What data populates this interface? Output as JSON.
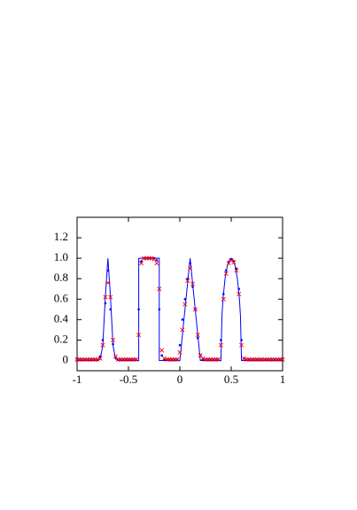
{
  "chart_data": {
    "type": "line",
    "xlim": [
      -1,
      1
    ],
    "ylim": [
      -0.1,
      1.4
    ],
    "xticks": [
      -1,
      -0.5,
      0,
      0.5,
      1
    ],
    "yticks": [
      0,
      0.2,
      0.4,
      0.6,
      0.8,
      {
        "value": 1,
        "label": "1.0"
      },
      1.2
    ],
    "series": [
      {
        "mode": "line",
        "color": "#0000ff",
        "x": [
          -1,
          -0.8,
          -0.775,
          -0.75,
          -0.725,
          -0.7,
          -0.675,
          -0.65,
          -0.625,
          -0.6,
          -0.4,
          -0.4,
          -0.2,
          -0.2,
          0,
          0.1,
          0.2,
          0.4,
          0.41,
          0.42,
          0.44,
          0.46,
          0.48,
          0.5,
          0.52,
          0.54,
          0.56,
          0.58,
          0.59,
          0.6,
          1
        ],
        "values": [
          0,
          0,
          0.013,
          0.146,
          0.62,
          1,
          0.62,
          0.146,
          0.013,
          0,
          0,
          1,
          1,
          0,
          0,
          1,
          0,
          0,
          0.436,
          0.6,
          0.8,
          0.917,
          0.98,
          1,
          0.98,
          0.917,
          0.8,
          0.6,
          0.436,
          0,
          0
        ]
      },
      {
        "mode": "dot",
        "color": "#0000ff",
        "x": [
          -1,
          -0.975,
          -0.95,
          -0.925,
          -0.9,
          -0.875,
          -0.85,
          -0.825,
          -0.8,
          -0.775,
          -0.75,
          -0.725,
          -0.7,
          -0.675,
          -0.65,
          -0.625,
          -0.6,
          -0.575,
          -0.55,
          -0.525,
          -0.5,
          -0.475,
          -0.45,
          -0.425,
          -0.4,
          -0.375,
          -0.35,
          -0.325,
          -0.3,
          -0.275,
          -0.25,
          -0.225,
          -0.2,
          -0.175,
          -0.15,
          -0.125,
          -0.1,
          -0.075,
          -0.05,
          -0.025,
          0,
          0.025,
          0.05,
          0.075,
          0.1,
          0.125,
          0.15,
          0.175,
          0.2,
          0.225,
          0.25,
          0.275,
          0.3,
          0.325,
          0.35,
          0.375,
          0.4,
          0.425,
          0.45,
          0.475,
          0.5,
          0.525,
          0.55,
          0.575,
          0.6,
          0.625,
          0.65,
          0.675,
          0.7,
          0.725,
          0.75,
          0.775,
          0.8,
          0.825,
          0.85,
          0.875,
          0.9,
          0.925,
          0.95,
          0.975,
          1
        ],
        "values": [
          0.01,
          0.01,
          0.01,
          0.01,
          0.01,
          0.01,
          0.01,
          0.01,
          0.01,
          0.04,
          0.2,
          0.56,
          0.88,
          0.5,
          0.16,
          0.03,
          0.01,
          0.01,
          0.01,
          0.01,
          0.01,
          0.01,
          0.01,
          0.01,
          0.5,
          0.97,
          1,
          1,
          1,
          1,
          1,
          0.98,
          0.5,
          0.05,
          0.01,
          0.01,
          0.01,
          0.01,
          0.01,
          0.01,
          0.15,
          0.4,
          0.6,
          0.8,
          0.95,
          0.72,
          0.5,
          0.22,
          0.05,
          0.01,
          0.01,
          0.01,
          0.01,
          0.01,
          0.01,
          0.01,
          0.2,
          0.65,
          0.88,
          0.96,
          0.99,
          0.97,
          0.9,
          0.7,
          0.2,
          0.02,
          0.01,
          0.01,
          0.01,
          0.01,
          0.01,
          0.01,
          0.01,
          0.01,
          0.01,
          0.01,
          0.01,
          0.01,
          0.01,
          0.01,
          0.01
        ]
      },
      {
        "mode": "cross",
        "color": "#ff0000",
        "x": [
          -1,
          -0.975,
          -0.95,
          -0.925,
          -0.9,
          -0.875,
          -0.85,
          -0.825,
          -0.8,
          -0.775,
          -0.75,
          -0.725,
          -0.7,
          -0.675,
          -0.65,
          -0.625,
          -0.6,
          -0.575,
          -0.55,
          -0.525,
          -0.5,
          -0.475,
          -0.45,
          -0.425,
          -0.4,
          -0.375,
          -0.35,
          -0.325,
          -0.3,
          -0.275,
          -0.25,
          -0.225,
          -0.2,
          -0.175,
          -0.15,
          -0.125,
          -0.1,
          -0.075,
          -0.05,
          -0.025,
          0,
          0.025,
          0.05,
          0.075,
          0.1,
          0.125,
          0.15,
          0.175,
          0.2,
          0.225,
          0.25,
          0.275,
          0.3,
          0.325,
          0.35,
          0.375,
          0.4,
          0.425,
          0.45,
          0.475,
          0.5,
          0.525,
          0.55,
          0.575,
          0.6,
          0.625,
          0.65,
          0.675,
          0.7,
          0.725,
          0.75,
          0.775,
          0.8,
          0.825,
          0.85,
          0.875,
          0.9,
          0.925,
          0.95,
          0.975,
          1
        ],
        "values": [
          0.01,
          0.01,
          0.01,
          0.01,
          0.01,
          0.01,
          0.01,
          0.01,
          0.01,
          0.02,
          0.15,
          0.62,
          0.76,
          0.62,
          0.2,
          0.04,
          0.01,
          0.01,
          0.01,
          0.01,
          0.01,
          0.01,
          0.01,
          0.01,
          0.25,
          0.95,
          1,
          1,
          1,
          1,
          0.99,
          0.95,
          0.7,
          0.1,
          0.02,
          0.01,
          0.01,
          0.01,
          0.01,
          0.01,
          0.08,
          0.3,
          0.55,
          0.78,
          0.9,
          0.75,
          0.5,
          0.25,
          0.05,
          0.02,
          0.01,
          0.01,
          0.01,
          0.01,
          0.01,
          0.01,
          0.15,
          0.6,
          0.85,
          0.95,
          0.98,
          0.96,
          0.88,
          0.65,
          0.15,
          0.02,
          0.01,
          0.01,
          0.01,
          0.01,
          0.01,
          0.01,
          0.01,
          0.01,
          0.01,
          0.01,
          0.01,
          0.01,
          0.01,
          0.01,
          0.01
        ]
      }
    ]
  }
}
